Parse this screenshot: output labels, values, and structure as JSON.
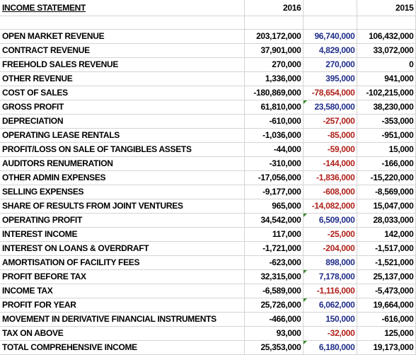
{
  "header": {
    "label": "INCOME STATEMENT",
    "col_a": "2016",
    "col_b": "",
    "col_c": "2015"
  },
  "rows": [
    {
      "label": "OPEN MARKET REVENUE",
      "a": "203,172,000",
      "b": "96,740,000",
      "c": "106,432,000",
      "b_color": "blue"
    },
    {
      "label": "CONTRACT REVENUE",
      "a": "37,901,000",
      "b": "4,829,000",
      "c": "33,072,000",
      "b_color": "blue"
    },
    {
      "label": "FREEHOLD SALES REVENUE",
      "a": "270,000",
      "b": "270,000",
      "c": "0",
      "b_color": "blue"
    },
    {
      "label": "OTHER REVENUE",
      "a": "1,336,000",
      "b": "395,000",
      "c": "941,000",
      "b_color": "blue"
    },
    {
      "label": "COST OF SALES",
      "a": "-180,869,000",
      "b": "-78,654,000",
      "c": "-102,215,000",
      "b_color": "red"
    },
    {
      "label": "GROSS PROFIT",
      "a": "61,810,000",
      "b": "23,580,000",
      "c": "38,230,000",
      "b_color": "blue",
      "marker": true
    },
    {
      "label": "DEPRECIATION",
      "a": "-610,000",
      "b": "-257,000",
      "c": "-353,000",
      "b_color": "red"
    },
    {
      "label": "OPERATING LEASE RENTALS",
      "a": "-1,036,000",
      "b": "-85,000",
      "c": "-951,000",
      "b_color": "red"
    },
    {
      "label": "PROFIT/LOSS ON SALE OF TANGIBLES ASSETS",
      "a": "-44,000",
      "b": "-59,000",
      "c": "15,000",
      "b_color": "red"
    },
    {
      "label": "AUDITORS RENUMERATION",
      "a": "-310,000",
      "b": "-144,000",
      "c": "-166,000",
      "b_color": "red"
    },
    {
      "label": "OTHER ADMIN EXPENSES",
      "a": "-17,056,000",
      "b": "-1,836,000",
      "c": "-15,220,000",
      "b_color": "red"
    },
    {
      "label": "SELLING EXPENSES",
      "a": "-9,177,000",
      "b": "-608,000",
      "c": "-8,569,000",
      "b_color": "red"
    },
    {
      "label": "SHARE OF RESULTS FROM JOINT VENTURES",
      "a": "965,000",
      "b": "-14,082,000",
      "c": "15,047,000",
      "b_color": "red"
    },
    {
      "label": "OPERATING PROFIT",
      "a": "34,542,000",
      "b": "6,509,000",
      "c": "28,033,000",
      "b_color": "blue",
      "marker": true
    },
    {
      "label": "INTEREST INCOME",
      "a": "117,000",
      "b": "-25,000",
      "c": "142,000",
      "b_color": "red"
    },
    {
      "label": "INTEREST ON LOANS & OVERDRAFT",
      "a": "-1,721,000",
      "b": "-204,000",
      "c": "-1,517,000",
      "b_color": "red"
    },
    {
      "label": "AMORTISATION OF FACILITY FEES",
      "a": "-623,000",
      "b": "898,000",
      "c": "-1,521,000",
      "b_color": "blue"
    },
    {
      "label": "PROFIT BEFORE TAX",
      "a": "32,315,000",
      "b": "7,178,000",
      "c": "25,137,000",
      "b_color": "blue",
      "marker": true
    },
    {
      "label": "INCOME TAX",
      "a": "-6,589,000",
      "b": "-1,116,000",
      "c": "-5,473,000",
      "b_color": "red"
    },
    {
      "label": "PROFIT FOR YEAR",
      "a": "25,726,000",
      "b": "6,062,000",
      "c": "19,664,000",
      "b_color": "blue",
      "marker": true
    },
    {
      "label": "MOVEMENT IN DERIVATIVE FINANCIAL INSTRUMENTS",
      "a": "-466,000",
      "b": "150,000",
      "c": "-616,000",
      "b_color": "blue"
    },
    {
      "label": "TAX ON ABOVE",
      "a": "93,000",
      "b": "-32,000",
      "c": "125,000",
      "b_color": "red"
    },
    {
      "label": "TOTAL COMPREHENSIVE INCOME",
      "a": "25,353,000",
      "b": "6,180,000",
      "c": "19,173,000",
      "b_color": "blue",
      "marker": true
    }
  ],
  "colors": {
    "positive_delta": "#1f2d8a",
    "negative_delta": "#b0201a",
    "grid": "#d4d4d4",
    "formula_marker": "#3a8a2e"
  }
}
